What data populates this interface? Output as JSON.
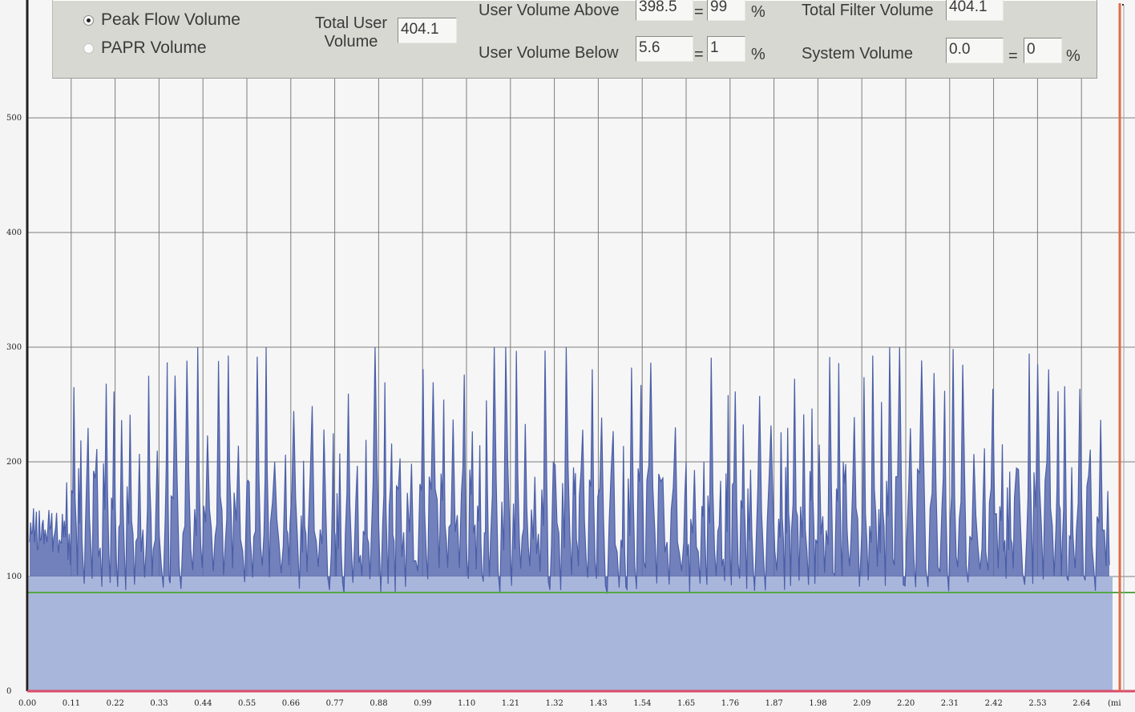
{
  "controls": {
    "radio_options": [
      {
        "label": "Peak Flow Volume",
        "selected": true
      },
      {
        "label": "PAPR Volume",
        "selected": false
      }
    ],
    "total_user_volume_label_line1": "Total User",
    "total_user_volume_label_line2": "Volume",
    "total_user_volume_value": "404.1",
    "user_volume_above_label": "User Volume Above",
    "user_volume_above_value": "398.5",
    "user_volume_above_percent": "99",
    "user_volume_below_label": "User Volume Below",
    "user_volume_below_value": "5.6",
    "user_volume_below_percent": "1",
    "total_filter_volume_label": "Total Filter Volume",
    "total_filter_volume_value": "404.1",
    "system_volume_label": "System Volume",
    "system_volume_value": "0.0",
    "system_volume_percent": "0",
    "equals_sign": "=",
    "percent_sign": "%"
  },
  "chart_data": {
    "type": "area",
    "x_unit_label": "(mi",
    "y_ticks": [
      0,
      100,
      200,
      300,
      400,
      500
    ],
    "x_ticks": [
      "0.00",
      "0.11",
      "0.22",
      "0.33",
      "0.44",
      "0.55",
      "0.66",
      "0.77",
      "0.88",
      "0.99",
      "1.10",
      "1.21",
      "1.32",
      "1.43",
      "1.54",
      "1.65",
      "1.76",
      "1.87",
      "1.98",
      "2.09",
      "2.20",
      "2.31",
      "2.42",
      "2.53",
      "2.64"
    ],
    "ylim": [
      0,
      500
    ],
    "xlim": [
      0.0,
      2.74
    ],
    "grid": true,
    "threshold_line": {
      "value": 86,
      "color": "#55a845"
    },
    "end_marker": {
      "x": 2.74,
      "color": "#e06a48"
    },
    "fill_level": 100,
    "baseline_color": "#dc4a6a",
    "series": [
      {
        "color": "#4a5ea8",
        "fill_color": "#a9b6dc",
        "min_envelope": 85,
        "max_envelope": 300,
        "typical_low": 100,
        "typical_high": 240
      }
    ],
    "colors": {
      "plot_bg": "#f6f6f6",
      "grid": "#7d7d7d",
      "axis": "#202020",
      "series_line": "#4a5ea8",
      "fill": "#a9b6dc"
    }
  }
}
